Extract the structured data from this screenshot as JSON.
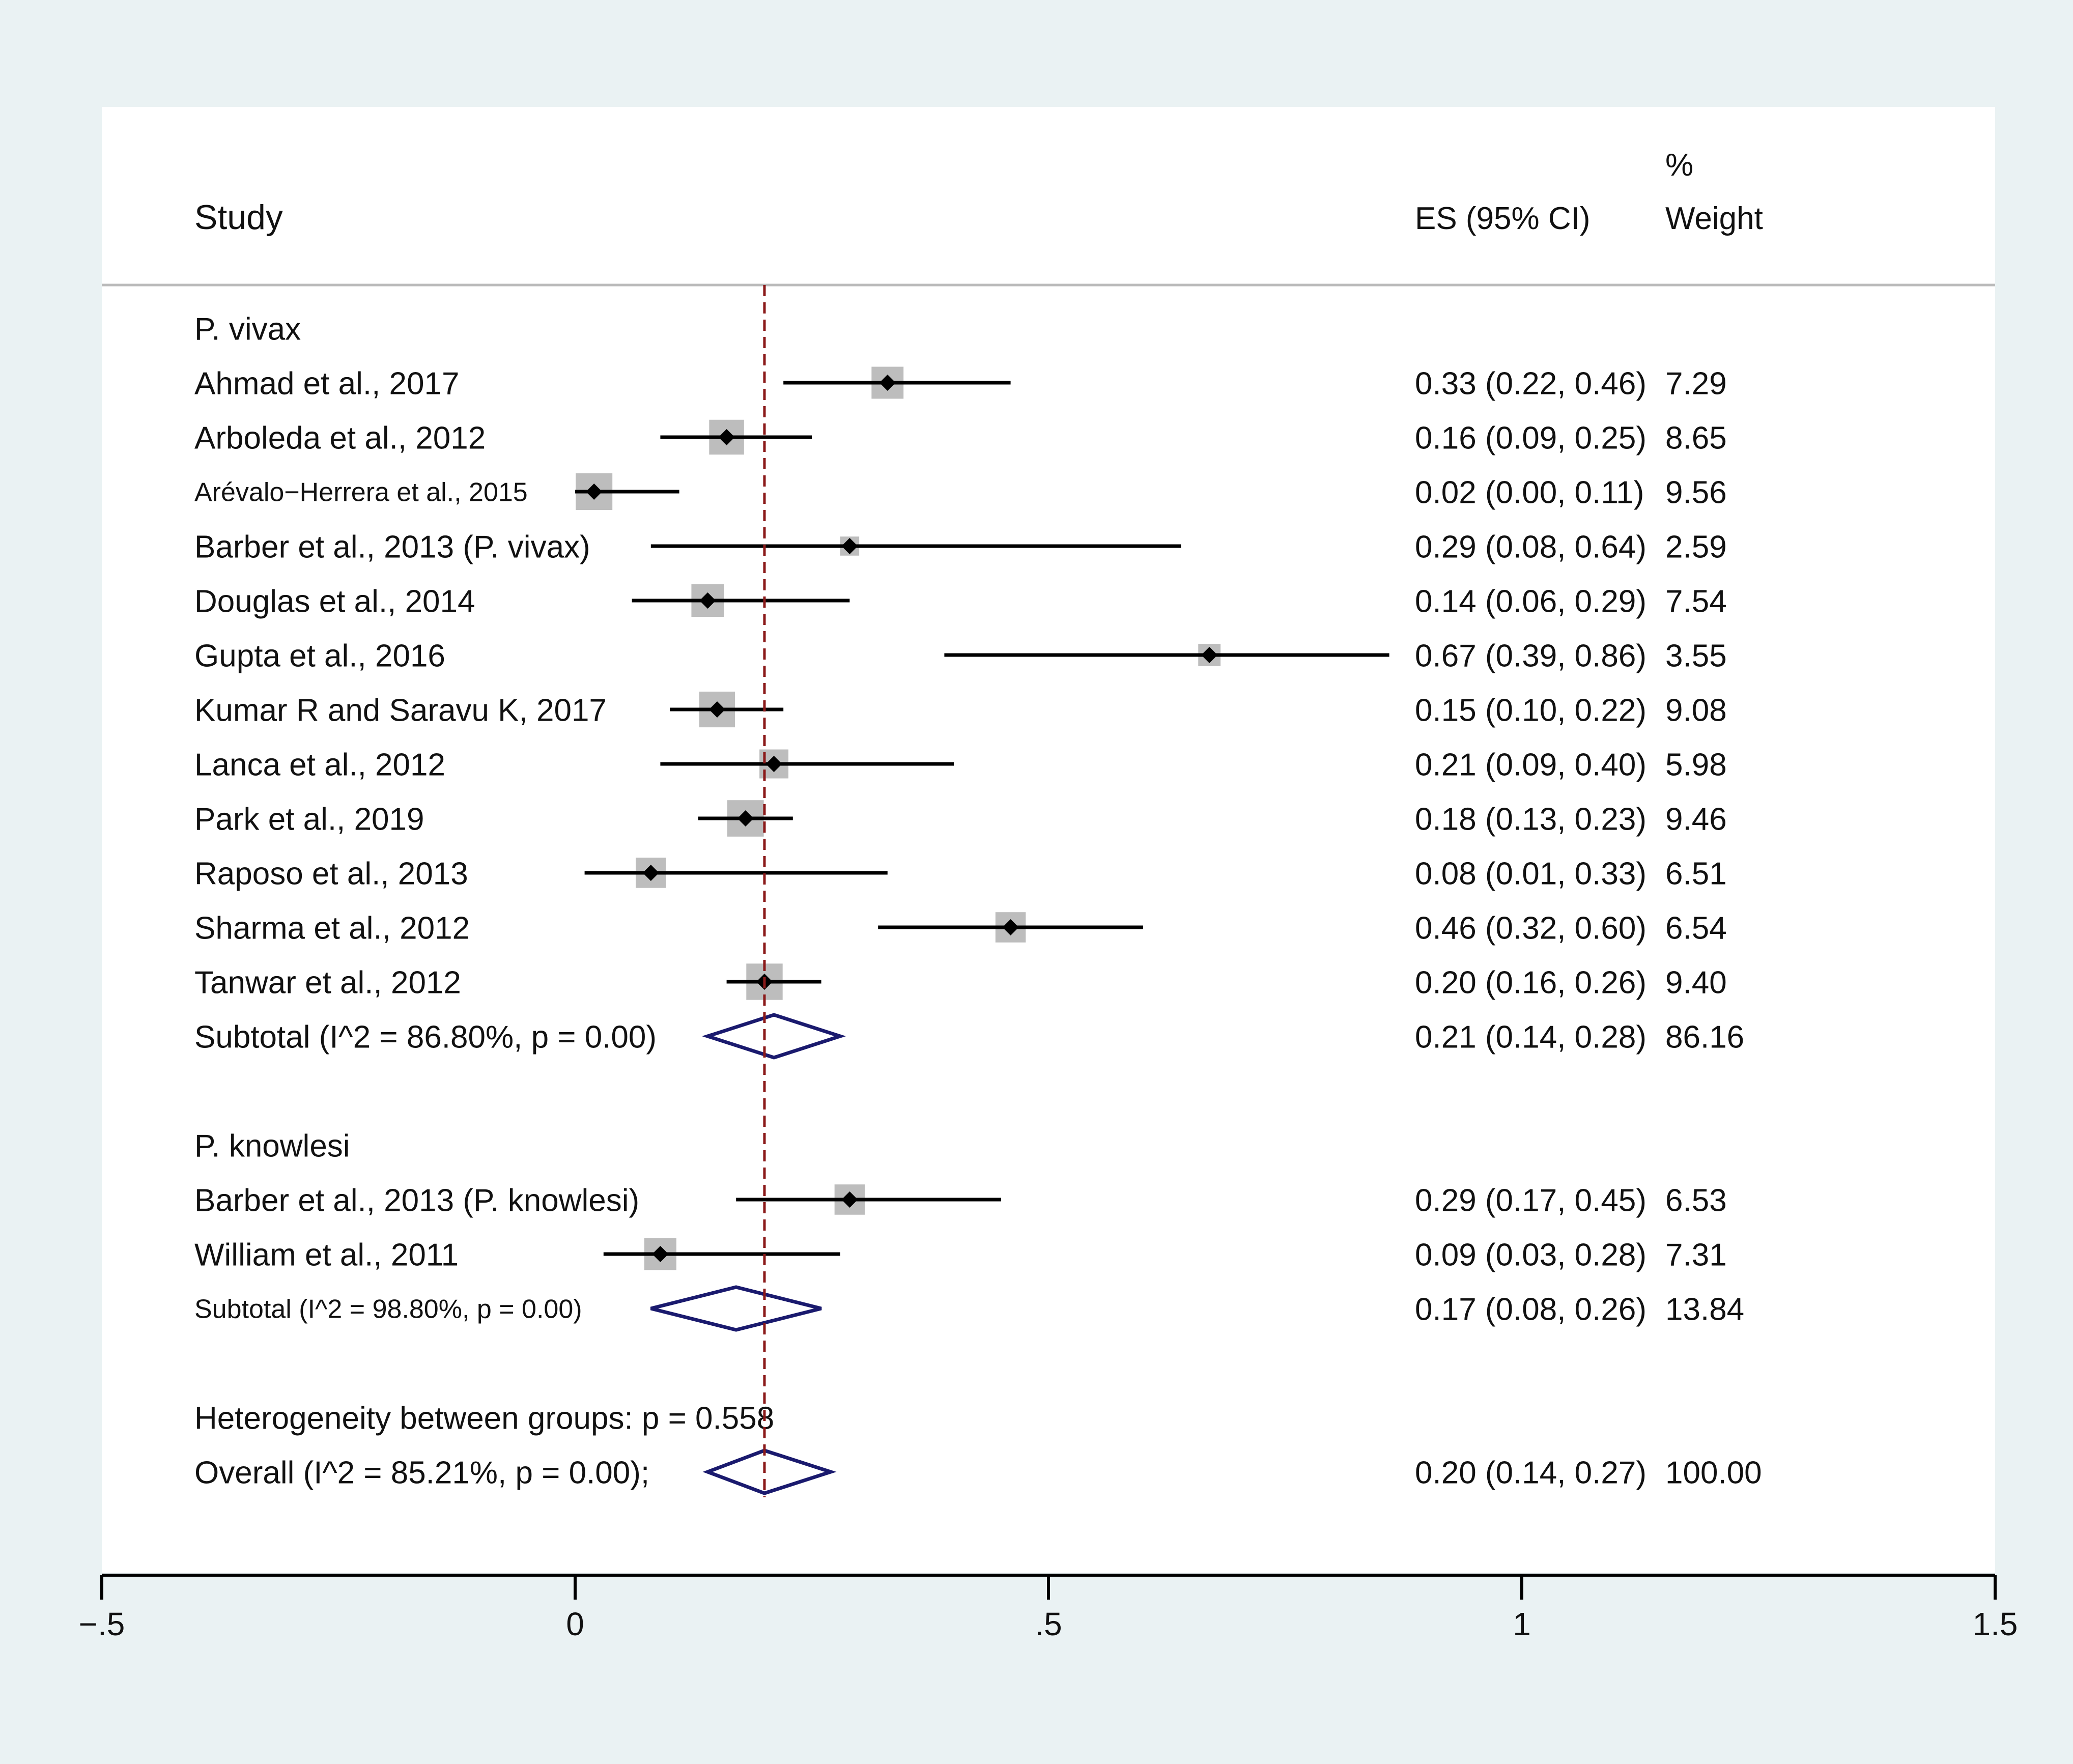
{
  "chart_data": {
    "type": "forest",
    "columns": {
      "study": "Study",
      "es": "ES (95% CI)",
      "weight_top": "%",
      "weight": "Weight"
    },
    "reference_line": 0.2,
    "xaxis": {
      "range": [
        -0.5,
        1.5
      ],
      "ticks": [
        -0.5,
        0,
        0.5,
        1,
        1.5
      ],
      "tick_labels": [
        "−.5",
        "0",
        ".5",
        "1",
        "1.5"
      ]
    },
    "groups": [
      {
        "name": "P. vivax",
        "studies": [
          {
            "label": "Ahmad et al., 2017",
            "es": 0.33,
            "lo": 0.22,
            "hi": 0.46,
            "weight": 7.29,
            "es_text": "0.33 (0.22, 0.46)",
            "weight_text": "7.29"
          },
          {
            "label": "Arboleda et al., 2012",
            "es": 0.16,
            "lo": 0.09,
            "hi": 0.25,
            "weight": 8.65,
            "es_text": "0.16 (0.09, 0.25)",
            "weight_text": "8.65"
          },
          {
            "label": "Arévalo−Herrera et al., 2015",
            "small": true,
            "es": 0.02,
            "lo": 0.0,
            "hi": 0.11,
            "weight": 9.56,
            "es_text": "0.02 (0.00, 0.11)",
            "weight_text": "9.56"
          },
          {
            "label": "Barber et al., 2013 (P. vivax)",
            "es": 0.29,
            "lo": 0.08,
            "hi": 0.64,
            "weight": 2.59,
            "es_text": "0.29 (0.08, 0.64)",
            "weight_text": "2.59"
          },
          {
            "label": "Douglas et al., 2014",
            "es": 0.14,
            "lo": 0.06,
            "hi": 0.29,
            "weight": 7.54,
            "es_text": "0.14 (0.06, 0.29)",
            "weight_text": "7.54"
          },
          {
            "label": "Gupta et al., 2016",
            "es": 0.67,
            "lo": 0.39,
            "hi": 0.86,
            "weight": 3.55,
            "es_text": "0.67 (0.39, 0.86)",
            "weight_text": "3.55"
          },
          {
            "label": "Kumar R and Saravu K, 2017",
            "es": 0.15,
            "lo": 0.1,
            "hi": 0.22,
            "weight": 9.08,
            "es_text": "0.15 (0.10, 0.22)",
            "weight_text": "9.08"
          },
          {
            "label": "Lanca et al., 2012",
            "es": 0.21,
            "lo": 0.09,
            "hi": 0.4,
            "weight": 5.98,
            "es_text": "0.21 (0.09, 0.40)",
            "weight_text": "5.98"
          },
          {
            "label": "Park et al., 2019",
            "es": 0.18,
            "lo": 0.13,
            "hi": 0.23,
            "weight": 9.46,
            "es_text": "0.18 (0.13, 0.23)",
            "weight_text": "9.46"
          },
          {
            "label": "Raposo et al., 2013",
            "es": 0.08,
            "lo": 0.01,
            "hi": 0.33,
            "weight": 6.51,
            "es_text": "0.08 (0.01, 0.33)",
            "weight_text": "6.51"
          },
          {
            "label": "Sharma et al., 2012",
            "es": 0.46,
            "lo": 0.32,
            "hi": 0.6,
            "weight": 6.54,
            "es_text": "0.46 (0.32, 0.60)",
            "weight_text": "6.54"
          },
          {
            "label": "Tanwar et al., 2012",
            "es": 0.2,
            "lo": 0.16,
            "hi": 0.26,
            "weight": 9.4,
            "es_text": "0.20 (0.16, 0.26)",
            "weight_text": "9.40"
          }
        ],
        "subtotal": {
          "label": "Subtotal  (I^2 = 86.80%, p = 0.00)",
          "es": 0.21,
          "lo": 0.14,
          "hi": 0.28,
          "weight": 86.16,
          "es_text": "0.21 (0.14, 0.28)",
          "weight_text": "86.16"
        }
      },
      {
        "name": "P. knowlesi",
        "studies": [
          {
            "label": "Barber et al., 2013 (P. knowlesi)",
            "es": 0.29,
            "lo": 0.17,
            "hi": 0.45,
            "weight": 6.53,
            "es_text": "0.29 (0.17, 0.45)",
            "weight_text": "6.53"
          },
          {
            "label": "William et al., 2011",
            "es": 0.09,
            "lo": 0.03,
            "hi": 0.28,
            "weight": 7.31,
            "es_text": "0.09 (0.03, 0.28)",
            "weight_text": "7.31"
          }
        ],
        "subtotal": {
          "label": "Subtotal  (I^2 = 98.80%, p = 0.00)",
          "small": true,
          "es": 0.17,
          "lo": 0.08,
          "hi": 0.26,
          "weight": 13.84,
          "es_text": "0.17 (0.08, 0.26)",
          "weight_text": "13.84"
        }
      }
    ],
    "heterogeneity_text": "Heterogeneity between groups: p = 0.558",
    "overall": {
      "label": "Overall  (I^2 = 85.21%, p = 0.00);",
      "es": 0.2,
      "lo": 0.14,
      "hi": 0.27,
      "weight": 100.0,
      "es_text": "0.20 (0.14, 0.27)",
      "weight_text": "100.00"
    },
    "colors": {
      "outer_background": "#eaf2f3",
      "plot_background": "#ffffff",
      "reference_line": "#8b1a1a",
      "diamond": "#1a1a6e",
      "weight_box": "#bdbdbd",
      "ci_line": "#000000",
      "header_rule": "#bbbbbb"
    }
  }
}
